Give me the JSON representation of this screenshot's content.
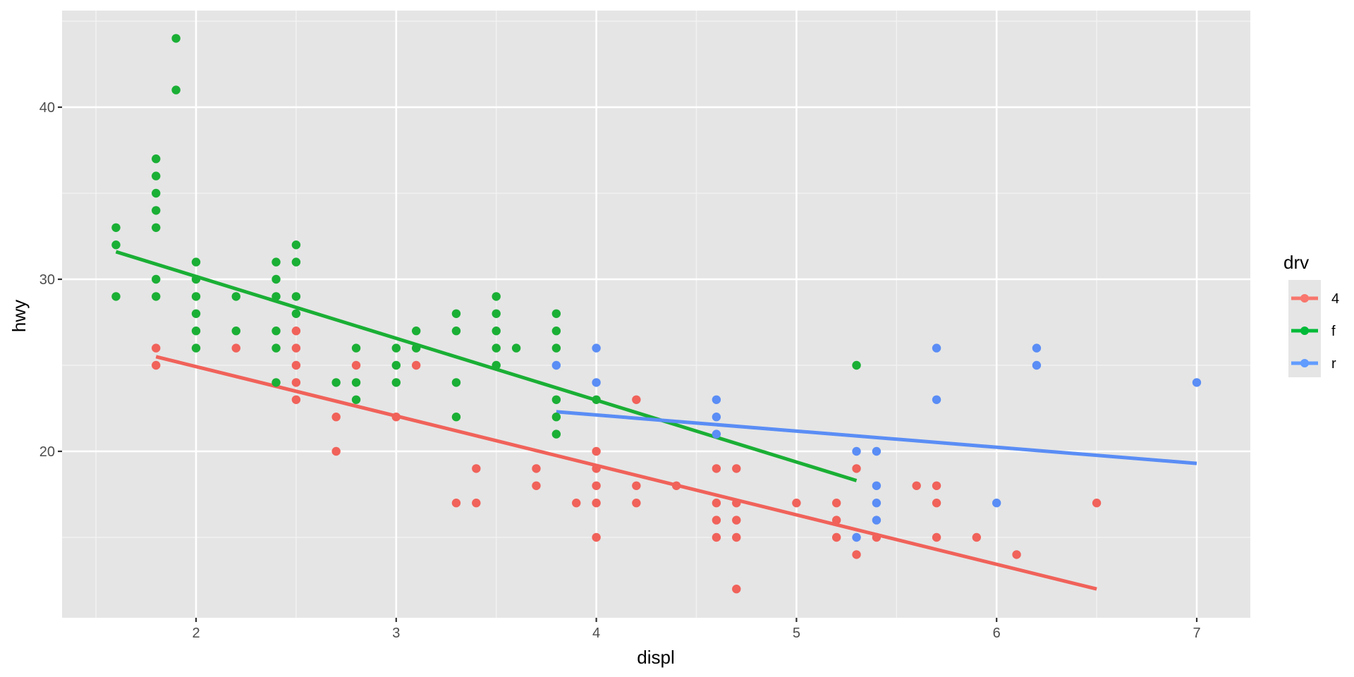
{
  "chart_data": {
    "type": "scatter",
    "title": "",
    "xlabel": "displ",
    "ylabel": "hwy",
    "xlim": [
      1.33,
      7.3
    ],
    "ylim": [
      10.4,
      45.6
    ],
    "x_ticks": [
      2,
      3,
      4,
      5,
      6,
      7
    ],
    "y_ticks": [
      20,
      30,
      40
    ],
    "x_minor": [
      1.5,
      2.5,
      3.5,
      4.5,
      5.5,
      6.5
    ],
    "y_minor": [
      15,
      25,
      35,
      45
    ],
    "grid": true,
    "legend": {
      "title": "drv",
      "position": "right",
      "entries": [
        {
          "label": "4",
          "color": "#F8766D"
        },
        {
          "label": "f",
          "color": "#00BA38"
        },
        {
          "label": "r",
          "color": "#619CFF"
        }
      ]
    },
    "series": [
      {
        "name": "f",
        "color": "#1AAF35",
        "points": [
          [
            1.6,
            33
          ],
          [
            1.6,
            32
          ],
          [
            1.6,
            29
          ],
          [
            1.8,
            37
          ],
          [
            1.8,
            36
          ],
          [
            1.8,
            35
          ],
          [
            1.8,
            34
          ],
          [
            1.8,
            33
          ],
          [
            1.8,
            30
          ],
          [
            1.8,
            29
          ],
          [
            1.9,
            44
          ],
          [
            1.9,
            41
          ],
          [
            2.0,
            31
          ],
          [
            2.0,
            30
          ],
          [
            2.0,
            29
          ],
          [
            2.0,
            28
          ],
          [
            2.0,
            27
          ],
          [
            2.0,
            26
          ],
          [
            2.2,
            29
          ],
          [
            2.2,
            27
          ],
          [
            2.4,
            31
          ],
          [
            2.4,
            30
          ],
          [
            2.4,
            29
          ],
          [
            2.4,
            27
          ],
          [
            2.4,
            26
          ],
          [
            2.4,
            24
          ],
          [
            2.5,
            32
          ],
          [
            2.5,
            31
          ],
          [
            2.5,
            29
          ],
          [
            2.5,
            28
          ],
          [
            2.7,
            24
          ],
          [
            2.8,
            26
          ],
          [
            2.8,
            24
          ],
          [
            2.8,
            23
          ],
          [
            3.0,
            26
          ],
          [
            3.0,
            25
          ],
          [
            3.0,
            24
          ],
          [
            3.1,
            27
          ],
          [
            3.1,
            26
          ],
          [
            3.3,
            28
          ],
          [
            3.3,
            27
          ],
          [
            3.3,
            24
          ],
          [
            3.3,
            22
          ],
          [
            3.5,
            29
          ],
          [
            3.5,
            28
          ],
          [
            3.5,
            27
          ],
          [
            3.5,
            26
          ],
          [
            3.5,
            25
          ],
          [
            3.6,
            26
          ],
          [
            3.8,
            28
          ],
          [
            3.8,
            27
          ],
          [
            3.8,
            26
          ],
          [
            3.8,
            23
          ],
          [
            3.8,
            22
          ],
          [
            3.8,
            21
          ],
          [
            4.0,
            23
          ],
          [
            5.3,
            25
          ]
        ],
        "fit": {
          "x": [
            1.6,
            5.3
          ],
          "y": [
            31.6,
            18.3
          ]
        }
      },
      {
        "name": "4",
        "color": "#F0625A",
        "points": [
          [
            1.8,
            26
          ],
          [
            1.8,
            25
          ],
          [
            2.2,
            26
          ],
          [
            2.5,
            27
          ],
          [
            2.5,
            26
          ],
          [
            2.5,
            25
          ],
          [
            2.5,
            24
          ],
          [
            2.5,
            23
          ],
          [
            2.7,
            22
          ],
          [
            2.7,
            20
          ],
          [
            2.8,
            25
          ],
          [
            3.0,
            22
          ],
          [
            3.1,
            25
          ],
          [
            3.3,
            17
          ],
          [
            3.4,
            19
          ],
          [
            3.4,
            17
          ],
          [
            3.7,
            19
          ],
          [
            3.7,
            18
          ],
          [
            3.9,
            17
          ],
          [
            4.0,
            20
          ],
          [
            4.0,
            19
          ],
          [
            4.0,
            18
          ],
          [
            4.0,
            17
          ],
          [
            4.0,
            15
          ],
          [
            4.2,
            23
          ],
          [
            4.2,
            18
          ],
          [
            4.2,
            17
          ],
          [
            4.4,
            18
          ],
          [
            4.6,
            19
          ],
          [
            4.6,
            17
          ],
          [
            4.6,
            16
          ],
          [
            4.6,
            15
          ],
          [
            4.7,
            19
          ],
          [
            4.7,
            17
          ],
          [
            4.7,
            16
          ],
          [
            4.7,
            15
          ],
          [
            4.7,
            12
          ],
          [
            5.0,
            17
          ],
          [
            5.2,
            17
          ],
          [
            5.2,
            16
          ],
          [
            5.2,
            15
          ],
          [
            5.3,
            19
          ],
          [
            5.3,
            14
          ],
          [
            5.4,
            15
          ],
          [
            5.6,
            18
          ],
          [
            5.7,
            18
          ],
          [
            5.7,
            17
          ],
          [
            5.7,
            15
          ],
          [
            5.9,
            15
          ],
          [
            6.1,
            14
          ],
          [
            6.5,
            17
          ]
        ],
        "fit": {
          "x": [
            1.8,
            6.5
          ],
          "y": [
            25.5,
            12.0
          ]
        }
      },
      {
        "name": "r",
        "color": "#5A8DF5",
        "points": [
          [
            3.8,
            25
          ],
          [
            4.0,
            26
          ],
          [
            4.0,
            24
          ],
          [
            4.6,
            23
          ],
          [
            4.6,
            22
          ],
          [
            4.6,
            21
          ],
          [
            5.3,
            20
          ],
          [
            5.3,
            15
          ],
          [
            5.4,
            20
          ],
          [
            5.4,
            18
          ],
          [
            5.4,
            17
          ],
          [
            5.4,
            16
          ],
          [
            5.7,
            26
          ],
          [
            5.7,
            23
          ],
          [
            6.0,
            17
          ],
          [
            6.2,
            26
          ],
          [
            6.2,
            25
          ],
          [
            7.0,
            24
          ]
        ],
        "fit": {
          "x": [
            3.8,
            7.0
          ],
          "y": [
            22.3,
            19.3
          ]
        }
      }
    ]
  }
}
